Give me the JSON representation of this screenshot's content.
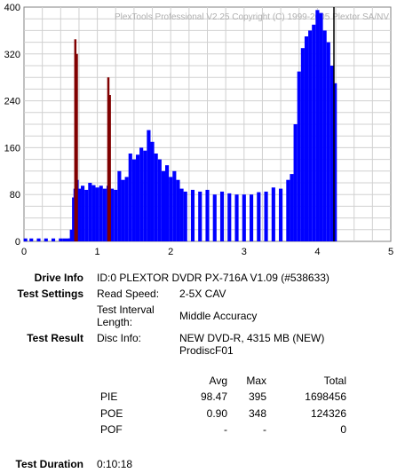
{
  "chart_data": {
    "type": "bar",
    "watermark": "PlexTools Professional V2.25 Copyright (C) 1999-2005 Plextor SA/NV",
    "xlim": [
      0,
      5
    ],
    "ylim": [
      0,
      400
    ],
    "x_ticks": [
      "0",
      "1",
      "2",
      "3",
      "4",
      "5"
    ],
    "y_ticks": [
      "0",
      "80",
      "160",
      "240",
      "320",
      "400"
    ],
    "grid": true,
    "series": [
      {
        "color": "#0000ff",
        "x": [
          0.02,
          0.1,
          0.2,
          0.3,
          0.4,
          0.5,
          0.55,
          0.6,
          0.63,
          0.65,
          0.68,
          0.7,
          0.72,
          0.75,
          0.8,
          0.85,
          0.9,
          0.95,
          1.0,
          1.05,
          1.1,
          1.15,
          1.2,
          1.25,
          1.3,
          1.35,
          1.4,
          1.45,
          1.5,
          1.55,
          1.6,
          1.65,
          1.7,
          1.75,
          1.8,
          1.85,
          1.9,
          1.95,
          2.0,
          2.05,
          2.1,
          2.15,
          2.2,
          2.3,
          2.4,
          2.5,
          2.6,
          2.7,
          2.8,
          2.9,
          3.0,
          3.1,
          3.2,
          3.3,
          3.4,
          3.5,
          3.6,
          3.65,
          3.7,
          3.75,
          3.8,
          3.85,
          3.9,
          3.95,
          4.0,
          4.05,
          4.1,
          4.15,
          4.2,
          4.24
        ],
        "y": [
          5,
          5,
          5,
          5,
          5,
          5,
          5,
          5,
          5,
          20,
          75,
          90,
          105,
          90,
          95,
          88,
          100,
          96,
          92,
          95,
          90,
          95,
          90,
          88,
          120,
          105,
          110,
          150,
          140,
          148,
          160,
          155,
          190,
          170,
          150,
          140,
          120,
          130,
          110,
          120,
          105,
          90,
          85,
          88,
          85,
          88,
          80,
          85,
          82,
          80,
          80,
          80,
          84,
          85,
          92,
          90,
          105,
          115,
          200,
          290,
          330,
          350,
          360,
          370,
          395,
          390,
          360,
          340,
          300,
          270
        ]
      },
      {
        "color": "#800000",
        "x": [
          0.7,
          0.72,
          1.15,
          1.17
        ],
        "y": [
          345,
          320,
          280,
          250
        ]
      }
    ]
  },
  "info": {
    "drive_label": "Drive Info",
    "drive_value": "ID:0 PLEXTOR DVDR PX-716A V1.09 (#538633)",
    "settings_label": "Test Settings",
    "read_speed_label": "Read Speed:",
    "read_speed_value": "2-5X CAV",
    "interval_label_1": "Test Interval",
    "interval_label_2": "Length:",
    "interval_value": "Middle Accuracy",
    "result_label": "Test Result",
    "disc_label": "Disc Info:",
    "disc_value_1": "NEW DVD-R, 4315 MB (NEW)",
    "disc_value_2": "ProdiscF01",
    "duration_label": "Test Duration",
    "duration_value": "0:10:18"
  },
  "stats": {
    "col_avg": "Avg",
    "col_max": "Max",
    "col_total": "Total",
    "rows": [
      {
        "name": "PIE",
        "avg": "98.47",
        "max": "395",
        "total": "1698456"
      },
      {
        "name": "POE",
        "avg": "0.90",
        "max": "348",
        "total": "124326"
      },
      {
        "name": "POF",
        "avg": "-",
        "max": "-",
        "total": "0"
      }
    ]
  }
}
